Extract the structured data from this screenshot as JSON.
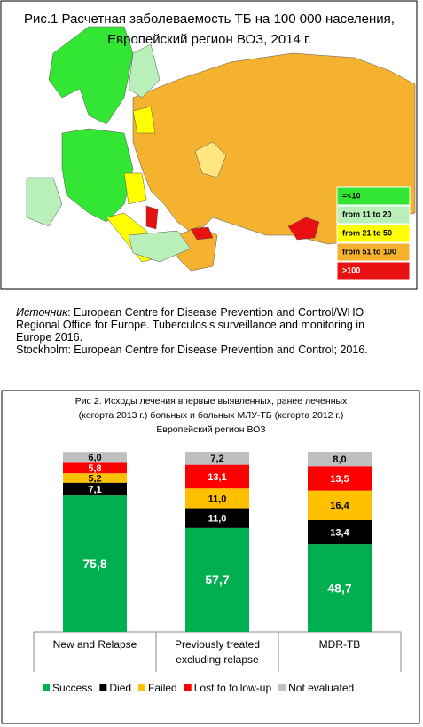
{
  "map": {
    "title": [
      "Рис.1 Расчетная заболеваемость ТБ на 100 000 населения,",
      "Европейский регион ВОЗ, 2014 г."
    ],
    "legend": [
      {
        "label": "=<10",
        "color": "#33e633"
      },
      {
        "label": "from 11 to 20",
        "color": "#b9f0b9"
      },
      {
        "label": "from 21 to 50",
        "color": "#ffff00"
      },
      {
        "label": "from 51 to 100",
        "color": "#f5b22f"
      },
      {
        "label": ">100",
        "color": "#e81010"
      }
    ]
  },
  "source": {
    "label": "Источник",
    "lines": [
      ": European Centre for Disease Prevention and Control/WHO Regional Office for Europe. Tuberculosis surveillance and monitoring in Europe 2016.",
      "Stockholm: European Centre for Disease Prevention and Control; 2016."
    ]
  },
  "chart_data": {
    "type": "stacked_bar",
    "title": [
      "Рис 2. Исходы лечения впервые выявленных, ранее леченных",
      "(когорта 2013 г.) больных и больных МЛУ-ТБ (когорта 2012 г.)",
      "Европейский регион ВОЗ"
    ],
    "categories": [
      "New and Relapse",
      "Previously treated excluding relapse",
      "MDR-TB"
    ],
    "series": [
      {
        "name": "Success",
        "color": "#00b050",
        "values": [
          75.8,
          57.7,
          48.7
        ],
        "value_labels": [
          "75,8",
          "57,7",
          "48,7"
        ]
      },
      {
        "name": "Died",
        "color": "#000000",
        "values": [
          7.1,
          11.0,
          13.4
        ],
        "value_labels": [
          "7,1",
          "11,0",
          "13,4"
        ]
      },
      {
        "name": "Failed",
        "color": "#ffc000",
        "values": [
          5.2,
          11.0,
          16.4
        ],
        "value_labels": [
          "5,2",
          "11,0",
          "16,4"
        ]
      },
      {
        "name": "Lost to follow-up",
        "color": "#ff0000",
        "values": [
          5.8,
          13.1,
          13.5
        ],
        "value_labels": [
          "5,8",
          "13,1",
          "13,5"
        ]
      },
      {
        "name": "Not evaluated",
        "color": "#bfbfbf",
        "values": [
          6.0,
          7.2,
          8.0
        ],
        "value_labels": [
          "6,0",
          "7,2",
          "8,0"
        ]
      }
    ],
    "legend": "bottom"
  }
}
